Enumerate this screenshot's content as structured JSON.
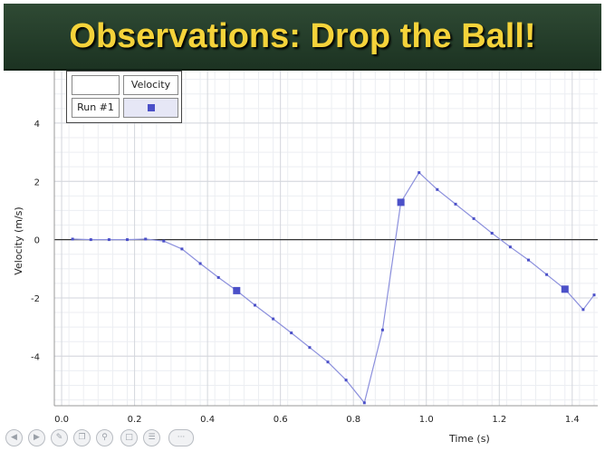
{
  "slide": {
    "title": "Observations: Drop the Ball!"
  },
  "legend": {
    "header": "Velocity",
    "run_label": "Run #1",
    "marker": "square-marker"
  },
  "toolbar": {
    "icons": [
      "back-icon",
      "forward-icon",
      "pen-icon",
      "copy-icon",
      "zoom-icon",
      "slides-icon",
      "menu-icon",
      "more-icon"
    ]
  },
  "colors": {
    "series": "#4b50c8",
    "line": "#8c90dd",
    "banner": "#24402b",
    "title": "#f5d33a"
  },
  "chart_data": {
    "type": "line",
    "xlabel": "Time (s)",
    "ylabel": "Velocity (m/s)",
    "xlim": [
      -0.02,
      1.47
    ],
    "ylim": [
      -5.7,
      5.8
    ],
    "xticks": [
      "0.0",
      "0.2",
      "0.4",
      "0.6",
      "0.8",
      "1.0",
      "1.2",
      "1.4"
    ],
    "yticks": [
      "-4",
      "-2",
      "0",
      "2",
      "4"
    ],
    "grid": true,
    "legend_position": "top-left",
    "series": [
      {
        "name": "Velocity",
        "x": [
          0.03,
          0.08,
          0.13,
          0.18,
          0.23,
          0.28,
          0.33,
          0.38,
          0.43,
          0.48,
          0.53,
          0.58,
          0.63,
          0.68,
          0.73,
          0.78,
          0.83,
          0.88,
          0.93,
          0.98,
          1.03,
          1.08,
          1.13,
          1.18,
          1.23,
          1.28,
          1.33,
          1.38,
          1.43,
          1.46
        ],
        "y": [
          0.02,
          0.0,
          0.0,
          0.0,
          0.02,
          -0.05,
          -0.32,
          -0.82,
          -1.3,
          -1.75,
          -2.25,
          -2.72,
          -3.2,
          -3.7,
          -4.2,
          -4.82,
          -5.6,
          -3.1,
          1.28,
          2.3,
          1.72,
          1.22,
          0.72,
          0.22,
          -0.25,
          -0.7,
          -1.2,
          -1.7,
          -2.4,
          -1.9
        ],
        "highlighted_x": [
          0.48,
          0.93,
          1.38
        ]
      }
    ]
  }
}
